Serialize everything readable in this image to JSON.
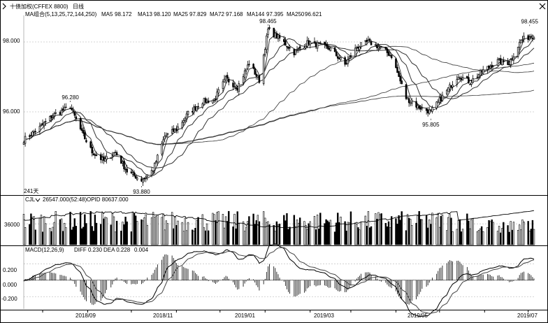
{
  "window": {
    "title": "十债加权(CFFEX 8800)",
    "period": "日线"
  },
  "main_panel": {
    "ma_label": "MA组合(5,13,25,72,144,250)",
    "ma_values": [
      {
        "name": "MA5",
        "value": "98.172"
      },
      {
        "name": "MA13",
        "value": "98.120"
      },
      {
        "name": "MA25",
        "value": "97.829"
      },
      {
        "name": "MA72",
        "value": "97.168"
      },
      {
        "name": "MA144",
        "value": "97.395"
      },
      {
        "name": "MA250",
        "value": "96.621"
      }
    ],
    "bar_count": "241天",
    "annotations": [
      {
        "text": "96.280",
        "date": "2018-08-20",
        "price": 96.28
      },
      {
        "text": "93.880",
        "date": "2018-10-08",
        "price": 93.88
      },
      {
        "text": "98.465",
        "date": "2019-01-03",
        "price": 98.465
      },
      {
        "text": "95.805",
        "date": "2019-04-25",
        "price": 95.805
      },
      {
        "text": "98.455",
        "date": "2019-07-02",
        "price": 98.455
      }
    ]
  },
  "volume_panel": {
    "label": "CJL",
    "value": "26547.000(52:48)",
    "opid": "OPID 80637.000"
  },
  "macd_panel": {
    "label": "MACD(12,26,9)",
    "diff": "DIFF 0.230",
    "dea": "DEA 0.228",
    "macd": "0.004"
  },
  "colors": {
    "up": "#ffffff",
    "down": "#000000",
    "ma_line": "#333333",
    "grid": "#c8c8c8",
    "axis": "#000000"
  },
  "chart_data": {
    "type": "candlestick",
    "price_axis": {
      "ylim": [
        93.88,
        98.6
      ],
      "tick_labels": [
        "98.000",
        "96.000"
      ],
      "tick_values": [
        98,
        96
      ]
    },
    "volume_axis": {
      "ylim": [
        0,
        70000
      ],
      "tick_labels": [
        "36000"
      ],
      "tick_values": [
        36000
      ]
    },
    "macd_axis": {
      "ylim": [
        -0.35,
        0.33
      ],
      "tick_labels": [
        "0.200",
        "0.000",
        "-0.200"
      ],
      "tick_values": [
        0.2,
        0,
        -0.2
      ]
    },
    "x_axis": {
      "labels": [
        "2018/09",
        "2018/11",
        "2019/01",
        "2019/03",
        "2019/05",
        "2019/07"
      ],
      "start_date": "2018-07-19",
      "end_date": "2019-07-05"
    },
    "close_anchors": [
      [
        "2018-07-19",
        95.2
      ],
      [
        "2018-07-30",
        95.55
      ],
      [
        "2018-08-08",
        95.9
      ],
      [
        "2018-08-20",
        96.15
      ],
      [
        "2018-08-28",
        95.4
      ],
      [
        "2018-09-04",
        94.85
      ],
      [
        "2018-09-12",
        94.6
      ],
      [
        "2018-09-20",
        94.85
      ],
      [
        "2018-09-28",
        94.3
      ],
      [
        "2018-10-08",
        94.05
      ],
      [
        "2018-10-16",
        94.35
      ],
      [
        "2018-10-24",
        95.3
      ],
      [
        "2018-11-01",
        95.5
      ],
      [
        "2018-11-09",
        95.95
      ],
      [
        "2018-11-19",
        96.3
      ],
      [
        "2018-11-27",
        96.35
      ],
      [
        "2018-12-05",
        96.95
      ],
      [
        "2018-12-13",
        96.7
      ],
      [
        "2018-12-21",
        97.4
      ],
      [
        "2018-12-28",
        96.9
      ],
      [
        "2019-01-03",
        98.35
      ],
      [
        "2019-01-11",
        98.1
      ],
      [
        "2019-01-21",
        97.7
      ],
      [
        "2019-01-31",
        98.0
      ],
      [
        "2019-02-15",
        97.8
      ],
      [
        "2019-02-25",
        97.35
      ],
      [
        "2019-03-05",
        97.85
      ],
      [
        "2019-03-13",
        98.0
      ],
      [
        "2019-03-21",
        97.85
      ],
      [
        "2019-03-29",
        97.6
      ],
      [
        "2019-04-08",
        96.4
      ],
      [
        "2019-04-16",
        96.15
      ],
      [
        "2019-04-25",
        96.0
      ],
      [
        "2019-05-06",
        96.6
      ],
      [
        "2019-05-14",
        97.05
      ],
      [
        "2019-05-22",
        96.85
      ],
      [
        "2019-05-30",
        97.15
      ],
      [
        "2019-06-10",
        97.45
      ],
      [
        "2019-06-18",
        97.4
      ],
      [
        "2019-06-26",
        98.05
      ],
      [
        "2019-07-05",
        98.2
      ]
    ],
    "ma_end_values": {
      "MA5": 98.172,
      "MA13": 98.12,
      "MA25": 97.829,
      "MA72": 97.168,
      "MA144": 97.395,
      "MA250": 96.621
    },
    "cjl_last": 26547,
    "opid_last": 80637,
    "macd_last": {
      "diff": 0.23,
      "dea": 0.228,
      "macd": 0.004
    }
  }
}
